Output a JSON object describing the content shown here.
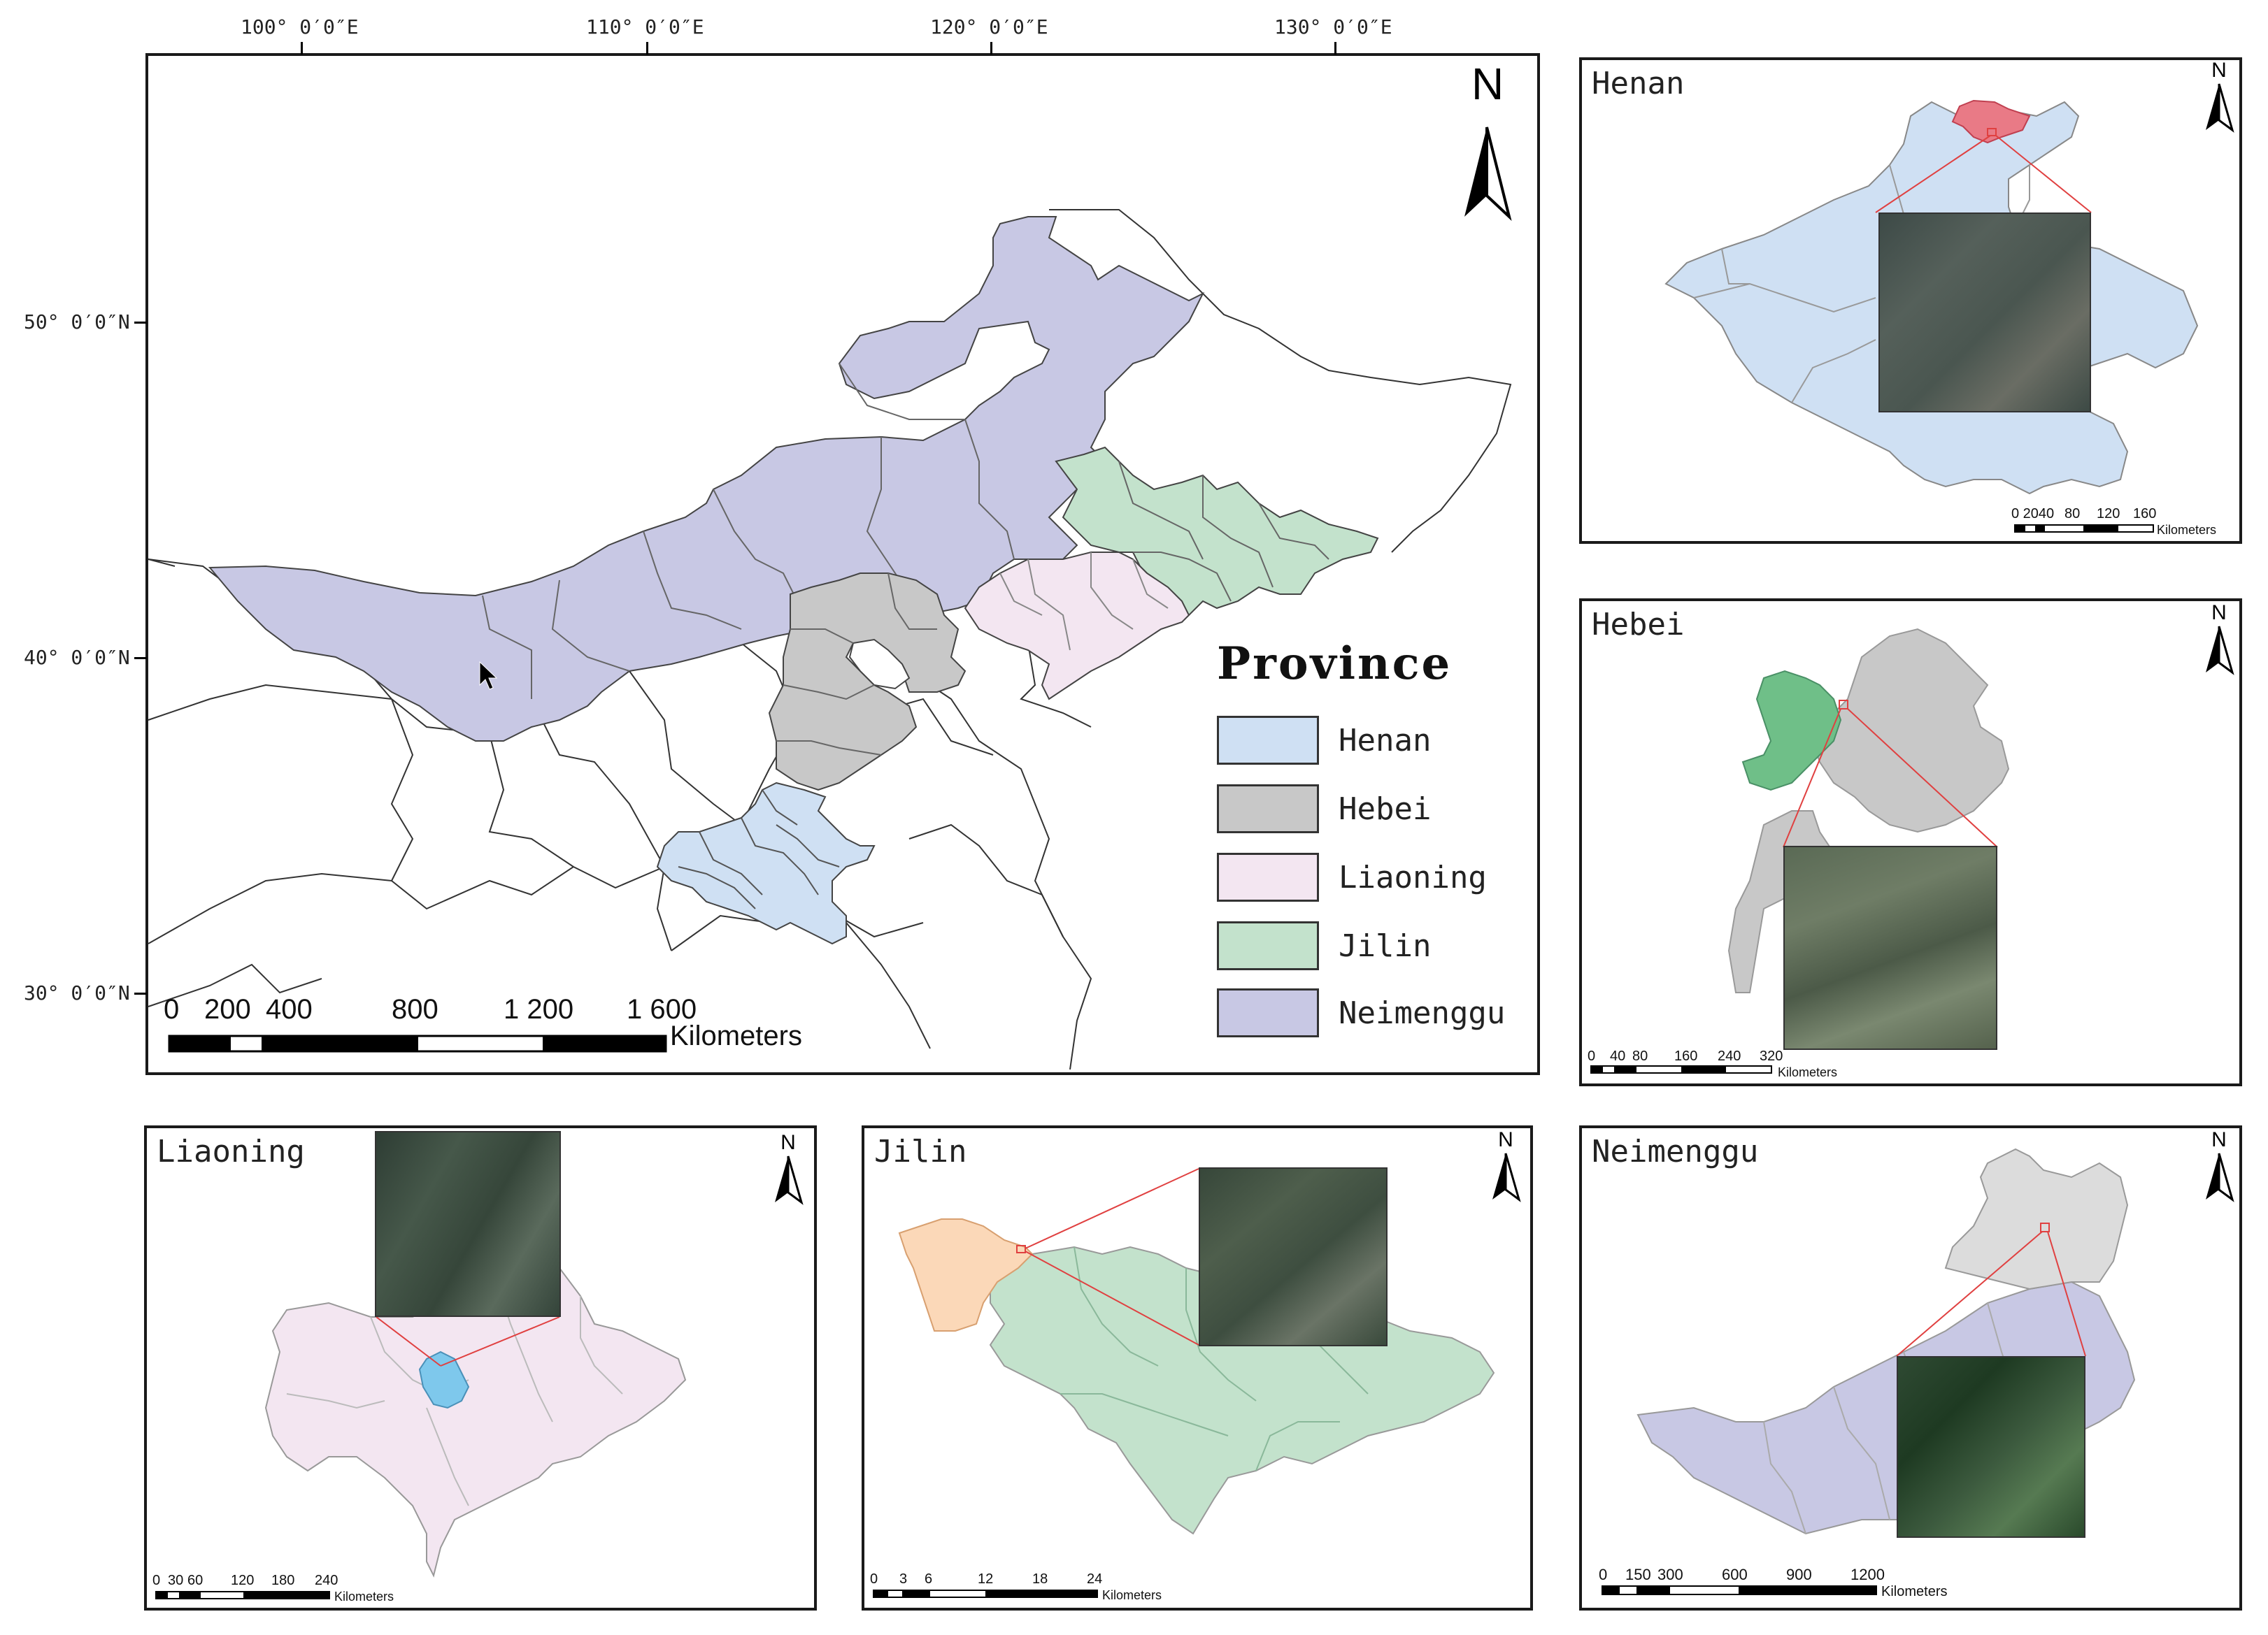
{
  "main_map": {
    "graticule_top": [
      "100° 0′0″E",
      "110° 0′0″E",
      "120° 0′0″E",
      "130° 0′0″E"
    ],
    "graticule_left": [
      "50° 0′0″N",
      "40° 0′0″N",
      "30° 0′0″N"
    ],
    "north_label": "N",
    "scale_ticks": [
      "0",
      "200",
      "400",
      "800",
      "1 200",
      "1 600"
    ],
    "scale_unit": "Kilometers"
  },
  "legend": {
    "title": "Province",
    "items": [
      {
        "label": "Henan",
        "color": "#cfe0f3"
      },
      {
        "label": "Hebei",
        "color": "#c8c8c8"
      },
      {
        "label": "Liaoning",
        "color": "#f3e6f1"
      },
      {
        "label": "Jilin",
        "color": "#c3e2cc"
      },
      {
        "label": "Neimenggu",
        "color": "#c8c8e4"
      }
    ]
  },
  "insets": {
    "henan": {
      "title": "Henan",
      "north": "N",
      "scale": [
        "0 2040",
        "80",
        "120",
        "160"
      ],
      "unit": "Kilometers"
    },
    "hebei": {
      "title": "Hebei",
      "north": "N",
      "scale": [
        "0",
        "40",
        "80",
        "160",
        "240",
        "320"
      ],
      "unit": "Kilometers"
    },
    "liaoning": {
      "title": "Liaoning",
      "north": "N",
      "scale": [
        "0",
        "30",
        "60",
        "120",
        "180",
        "240"
      ],
      "unit": "Kilometers"
    },
    "jilin": {
      "title": "Jilin",
      "north": "N",
      "scale": [
        "0",
        "3",
        "6",
        "12",
        "18",
        "24"
      ],
      "unit": "Kilometers"
    },
    "neimenggu": {
      "title": "Neimenggu",
      "north": "N",
      "scale": [
        "0",
        "150",
        "300",
        "600",
        "900",
        "1200"
      ],
      "unit": "Kilometers"
    }
  },
  "colors": {
    "henan": "#cfe0f3",
    "hebei": "#c8c8c8",
    "liaoning": "#f3e6f1",
    "jilin": "#c3e2cc",
    "neimenggu": "#c8c8e4",
    "highlight_red": "#e97a86",
    "highlight_green": "#6fbf88",
    "highlight_blue": "#7ec8ec",
    "highlight_orange": "#fbd8b8",
    "leader_line": "#e04040"
  }
}
